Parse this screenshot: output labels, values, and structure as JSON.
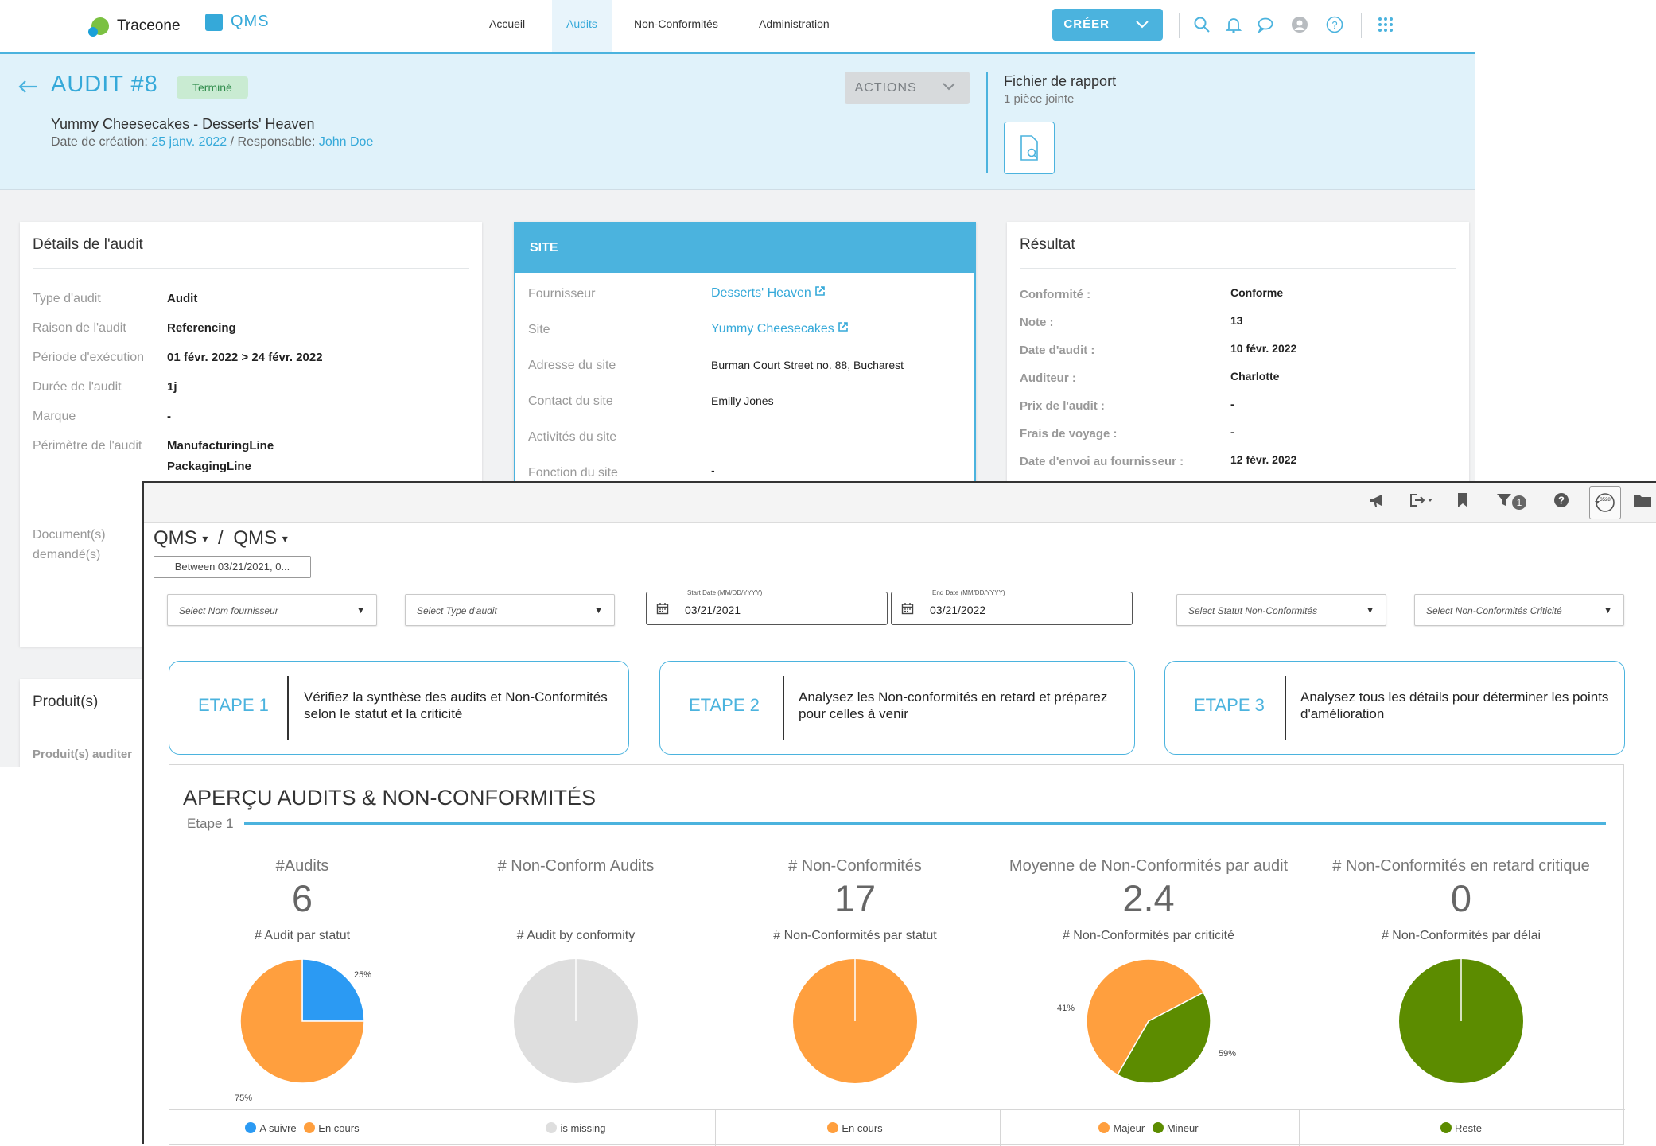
{
  "app": {
    "brand": "Traceone",
    "module": "QMS"
  },
  "nav": {
    "items": [
      "Accueil",
      "Audits",
      "Non-Conformités",
      "Administration"
    ],
    "active": "Audits",
    "create_label": "CRÉER"
  },
  "audit": {
    "title": "AUDIT #8",
    "status": "Terminé",
    "subtitle": "Yummy Cheesecakes - Desserts' Heaven",
    "created_label": "Date de création:",
    "created_date": "25 janv. 2022",
    "owner_label": "/ Responsable:",
    "owner": "John Doe",
    "actions_label": "ACTIONS",
    "report_title": "Fichier de rapport",
    "report_sub": "1 pièce jointe"
  },
  "details": {
    "title": "Détails de l'audit",
    "rows": [
      {
        "k": "Type d'audit",
        "v": "Audit"
      },
      {
        "k": "Raison de l'audit",
        "v": "Referencing"
      },
      {
        "k": "Période d'exécution",
        "v": "01 févr. 2022 > 24 févr. 2022"
      },
      {
        "k": "Durée de l'audit",
        "v": "1j"
      },
      {
        "k": "Marque",
        "v": "-"
      },
      {
        "k": "Périmètre de l'audit",
        "v": "ManufacturingLine",
        "v2": "PackagingLine"
      }
    ],
    "docs_label_1": "Document(s)",
    "docs_label_2": "demandé(s)"
  },
  "produits": {
    "title": "Produit(s)",
    "sub": "Produit(s) auditer"
  },
  "site": {
    "title": "SITE",
    "rows": [
      {
        "k": "Fournisseur",
        "v": "Desserts' Heaven"
      },
      {
        "k": "Site",
        "v": "Yummy Cheesecakes"
      },
      {
        "k": "Adresse du site",
        "v": "Burman Court Street no. 88, Bucharest"
      },
      {
        "k": "Contact du site",
        "v": "Emilly Jones"
      },
      {
        "k": "Activités du site",
        "v": ""
      },
      {
        "k": "Fonction du site",
        "v": "-"
      }
    ]
  },
  "resultat": {
    "title": "Résultat",
    "rows": [
      {
        "k": "Conformité :",
        "v": "Conforme"
      },
      {
        "k": "Note :",
        "v": "13"
      },
      {
        "k": "Date d'audit :",
        "v": "10 févr. 2022"
      },
      {
        "k": "Auditeur :",
        "v": "Charlotte"
      },
      {
        "k": "Prix de l'audit :",
        "v": "-"
      },
      {
        "k": "Frais de voyage :",
        "v": "-"
      },
      {
        "k": "Date d'envoi au fournisseur :",
        "v": "12 févr. 2022"
      }
    ]
  },
  "dashboard": {
    "breadcrumb_1": "QMS",
    "breadcrumb_sep": "/",
    "breadcrumb_2": "QMS",
    "range_pill": "Between 03/21/2021, 0...",
    "filter_badge": "1",
    "history_badge": "3528",
    "filters": {
      "fournisseur": "Select Nom fournisseur",
      "type": "Select Type d'audit",
      "start_label": "Start Date (MM/DD/YYYY)",
      "start_value": "03/21/2021",
      "end_label": "End Date (MM/DD/YYYY)",
      "end_value": "03/21/2022",
      "statut": "Select Statut Non-Conformités",
      "criticite": "Select Non-Conformités Criticité"
    },
    "steps": [
      {
        "label": "ETAPE 1",
        "text": "Vérifiez la synthèse des audits et Non-Conformités selon le statut et la criticité"
      },
      {
        "label": "ETAPE 2",
        "text": "Analysez les Non-conformités en retard et préparez pour celles à venir"
      },
      {
        "label": "ETAPE 3",
        "text": "Analysez tous les détails pour déterminer les points d'amélioration"
      }
    ],
    "overview_title": "APERÇU AUDITS & NON-CONFORMITÉS",
    "overview_step": "Etape 1",
    "kpis": [
      {
        "label": "#Audits",
        "value": "6"
      },
      {
        "label": "# Non-Conform Audits",
        "value": ""
      },
      {
        "label": "# Non-Conformités",
        "value": "17"
      },
      {
        "label": "Moyenne de Non-Conformités par audit",
        "value": "2.4"
      },
      {
        "label": "# Non-Conformités en retard critique",
        "value": "0"
      }
    ],
    "colors": {
      "blue": "#2b9af3",
      "orange": "#ff9f3e",
      "green": "#5c8c00",
      "grey": "#dedede",
      "accent": "#4bb3de"
    }
  },
  "chart_data": [
    {
      "type": "pie",
      "title": "# Audit par statut",
      "categories": [
        "A suivre",
        "En cours"
      ],
      "values": [
        25,
        75
      ],
      "labels": [
        "25%",
        "75%"
      ],
      "colors": [
        "#2b9af3",
        "#ff9f3e"
      ]
    },
    {
      "type": "pie",
      "title": "# Audit by conformity",
      "categories": [
        "is missing"
      ],
      "values": [
        100
      ],
      "colors": [
        "#dedede"
      ]
    },
    {
      "type": "pie",
      "title": "# Non-Conformités par statut",
      "categories": [
        "En cours"
      ],
      "values": [
        100
      ],
      "colors": [
        "#ff9f3e"
      ]
    },
    {
      "type": "pie",
      "title": "# Non-Conformités par criticité",
      "categories": [
        "Majeur",
        "Mineur"
      ],
      "values": [
        59,
        41
      ],
      "labels": [
        "59%",
        "41%"
      ],
      "colors": [
        "#ff9f3e",
        "#5c8c00"
      ]
    },
    {
      "type": "pie",
      "title": "# Non-Conformités par délai",
      "categories": [
        "Reste"
      ],
      "values": [
        100
      ],
      "colors": [
        "#5c8c00"
      ]
    }
  ]
}
